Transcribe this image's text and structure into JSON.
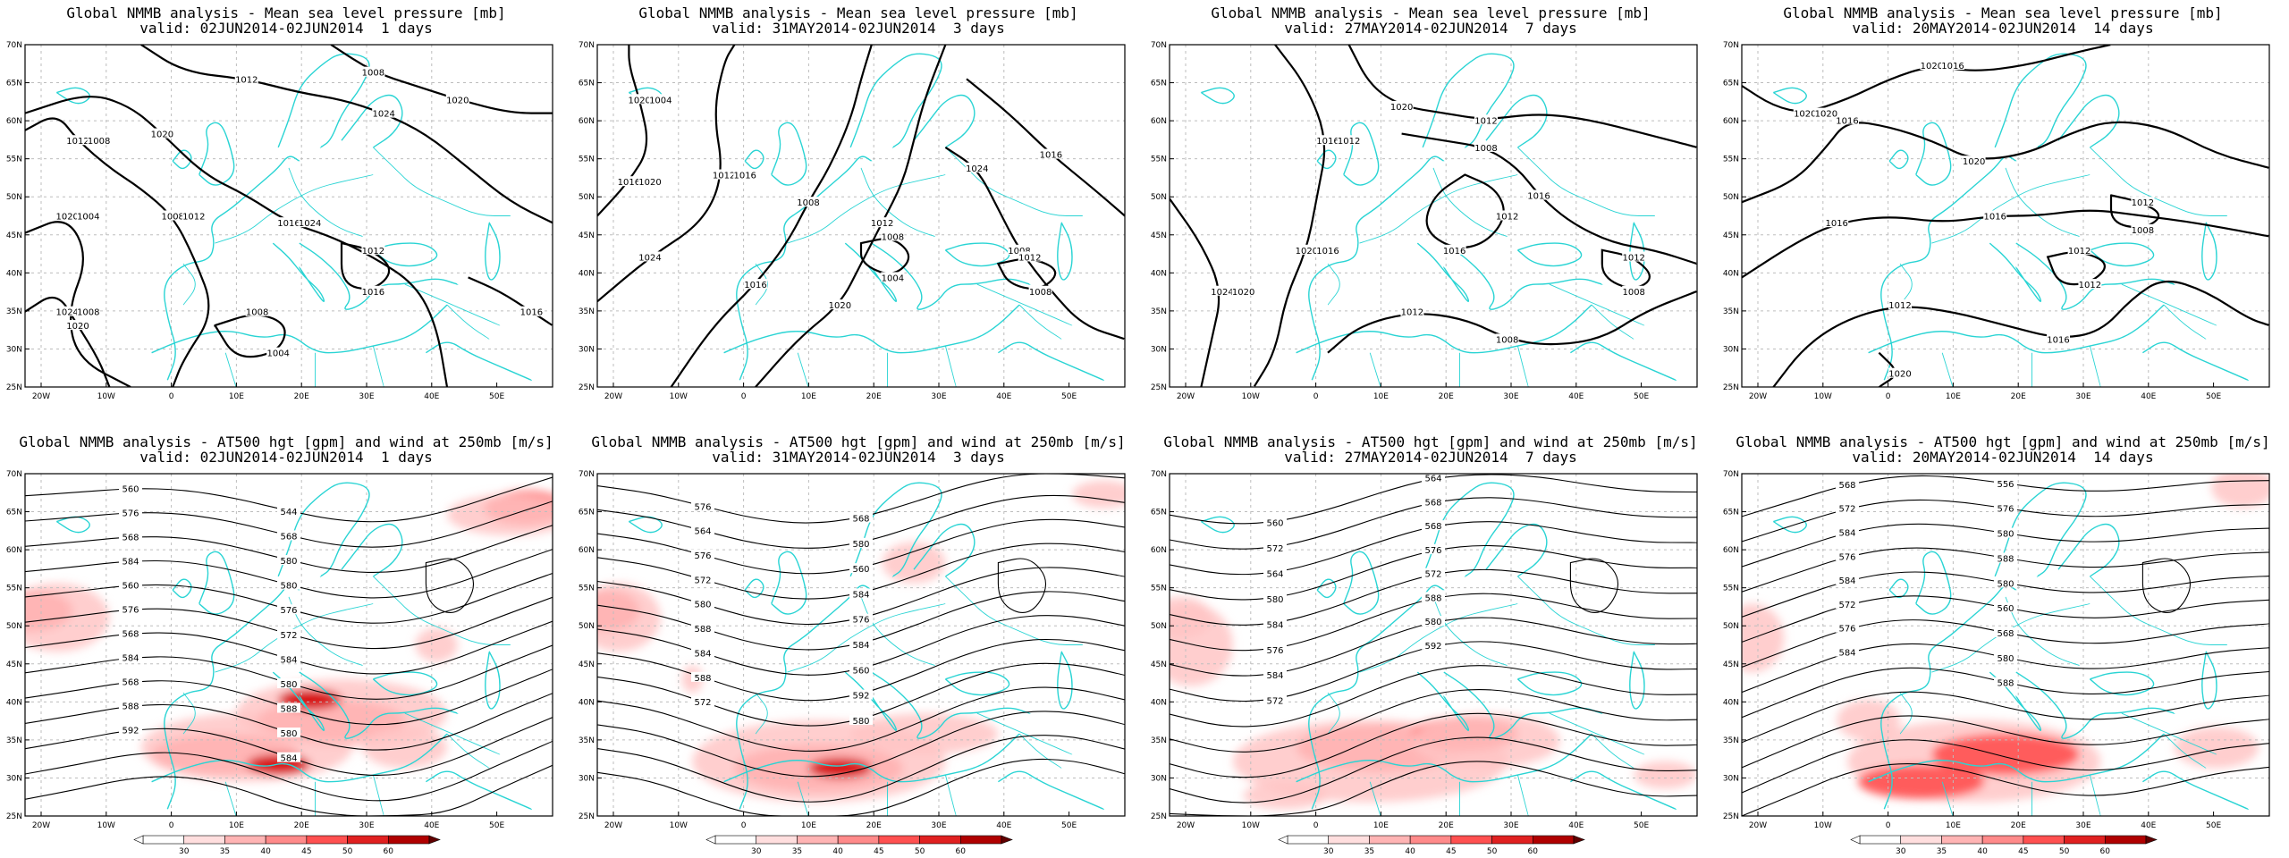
{
  "colors": {
    "coast": "#2ad4d4",
    "isobar": "#000000",
    "grid": "#bdbdbd",
    "wind_light": "#ffc6c6",
    "wind_mid": "#ff5050",
    "wind_strong": "#d40000"
  },
  "axis": {
    "lat_labels": [
      "70N",
      "65N",
      "60N",
      "55N",
      "50N",
      "45N",
      "40N",
      "35N",
      "30N",
      "25N"
    ],
    "lon_labels": [
      "20W",
      "10W",
      "0",
      "10E",
      "20E",
      "30E",
      "40E",
      "50E"
    ]
  },
  "colorbar_labels": [
    "30",
    "35",
    "40",
    "45",
    "50",
    "60"
  ],
  "panels": [
    {
      "title1": "Global NMMB analysis - Mean sea level pressure [mb]",
      "title2": "valid: 02JUN2014-02JUN2014  1 days",
      "kind": "mslp",
      "contour_labels": [
        "1024",
        "1020",
        "1008",
        "1012",
        "1016",
        "1020",
        "1024",
        "1012",
        "1020",
        "1008",
        "1016",
        "1012",
        "1004",
        "1008",
        "1016",
        "1020",
        "1008",
        "1004",
        "1012",
        "1008",
        "1024"
      ]
    },
    {
      "title1": "Global NMMB analysis - Mean sea level pressure [mb]",
      "title2": "valid: 31MAY2014-02JUN2014  3 days",
      "kind": "mslp",
      "contour_labels": [
        "1020",
        "1016",
        "1012",
        "1024",
        "1008",
        "1016",
        "1012",
        "1020",
        "1008",
        "1024",
        "1016",
        "1008",
        "1012",
        "1004",
        "1008",
        "1004",
        "1020",
        "1016"
      ]
    },
    {
      "title1": "Global NMMB analysis - Mean sea level pressure [mb]",
      "title2": "valid: 27MAY2014-02JUN2014  7 days",
      "kind": "mslp",
      "contour_labels": [
        "1024",
        "1020",
        "1016",
        "1012",
        "1020",
        "1016",
        "1008",
        "1016",
        "1012",
        "1008",
        "1012",
        "1008",
        "1012",
        "1020",
        "1016",
        "1012"
      ]
    },
    {
      "title1": "Global NMMB analysis - Mean sea level pressure [mb]",
      "title2": "valid: 20MAY2014-02JUN2014  14 days",
      "kind": "mslp",
      "contour_labels": [
        "1020",
        "1020",
        "1020",
        "1016",
        "1016",
        "1016",
        "1016",
        "1012",
        "1012",
        "1012",
        "1008",
        "1012",
        "1020",
        "1016",
        "1020"
      ]
    },
    {
      "title1": "Global NMMB analysis - AT500 hgt [gpm] and wind at 250mb [m/s]",
      "title2": "valid: 02JUN2014-02JUN2014  1 days",
      "kind": "z500",
      "contour_labels": [
        "544",
        "560",
        "568",
        "576",
        "580",
        "568",
        "580",
        "584",
        "576",
        "560",
        "572",
        "576",
        "584",
        "568",
        "580",
        "584",
        "588",
        "568",
        "580",
        "588",
        "584",
        "592"
      ]
    },
    {
      "title1": "Global NMMB analysis - AT500 hgt [gpm] and wind at 250mb [m/s]",
      "title2": "valid: 31MAY2014-02JUN2014  3 days",
      "kind": "z500",
      "contour_labels": [
        "568",
        "576",
        "580",
        "564",
        "560",
        "576",
        "584",
        "572",
        "576",
        "580",
        "584",
        "588",
        "560",
        "584",
        "592",
        "588",
        "580",
        "572"
      ]
    },
    {
      "title1": "Global NMMB analysis - AT500 hgt [gpm] and wind at 250mb [m/s]",
      "title2": "valid: 27MAY2014-02JUN2014  7 days",
      "kind": "z500",
      "contour_labels": [
        "564",
        "560",
        "568",
        "572",
        "568",
        "564",
        "576",
        "580",
        "572",
        "584",
        "588",
        "576",
        "580",
        "584",
        "592",
        "572"
      ]
    },
    {
      "title1": "Global NMMB analysis - AT500 hgt [gpm] and wind at 250mb [m/s]",
      "title2": "valid: 20MAY2014-02JUN2014  14 days",
      "kind": "z500",
      "contour_labels": [
        "556",
        "568",
        "576",
        "572",
        "580",
        "584",
        "588",
        "576",
        "580",
        "584",
        "560",
        "572",
        "568",
        "576",
        "580",
        "584",
        "588"
      ]
    }
  ]
}
